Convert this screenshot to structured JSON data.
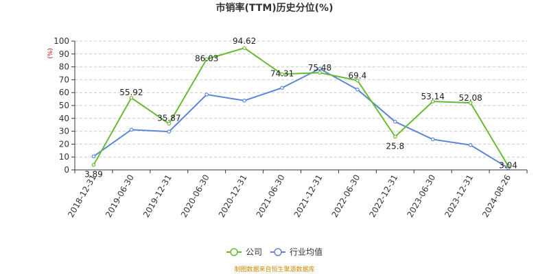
{
  "chart_data": {
    "type": "line",
    "title": "市销率(TTM)历史分位(%)",
    "unit_label": "(%)",
    "categories": [
      "2018-12-31",
      "2019-06-30",
      "2019-12-31",
      "2020-06-30",
      "2020-12-31",
      "2021-06-30",
      "2021-12-31",
      "2022-06-30",
      "2022-12-31",
      "2023-06-30",
      "2023-12-31",
      "2024-08-26"
    ],
    "series": [
      {
        "name": "公司",
        "color": "#66bb33",
        "values": [
          3.89,
          55.92,
          35.87,
          86.03,
          94.62,
          74.31,
          75.48,
          69.4,
          25.8,
          53.14,
          52.08,
          3.04
        ],
        "labels_shown": true
      },
      {
        "name": "行业均值",
        "color": "#5b87d6",
        "values": [
          10.5,
          31.2,
          29.7,
          58.5,
          53.8,
          63.7,
          78.5,
          62.4,
          37.4,
          23.7,
          19.3,
          1.5
        ],
        "labels_shown": false
      }
    ],
    "ylim": [
      0,
      100
    ],
    "yticks": [
      0,
      10,
      20,
      30,
      40,
      50,
      60,
      70,
      80,
      90,
      100
    ],
    "grid": "horizontal-dashed",
    "legend": "bottom-center",
    "source": "制图数据来自恒生聚源数据库"
  }
}
